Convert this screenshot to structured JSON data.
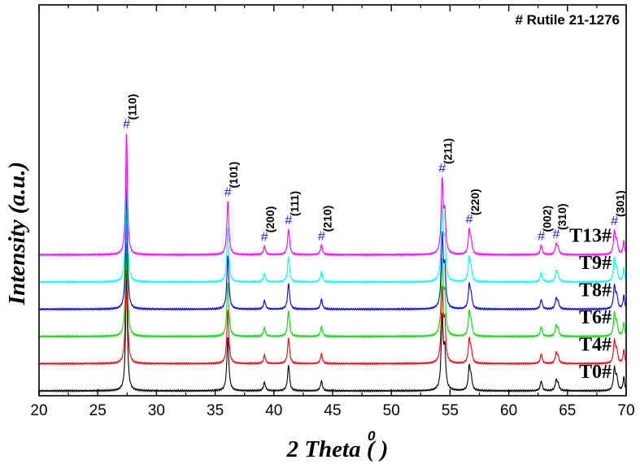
{
  "chart_data": {
    "type": "line",
    "title": "",
    "xlabel": "2 Theta",
    "xlabel_unit": "( )",
    "xlabel_unit_superscript": "0",
    "ylabel": "Intensity",
    "ylabel_unit": "(a.u.)",
    "xlim": [
      20,
      70
    ],
    "xticks": [
      20,
      25,
      30,
      35,
      40,
      45,
      50,
      55,
      60,
      65,
      70
    ],
    "xtick_labels": [
      "20",
      "25",
      "30",
      "35",
      "40",
      "45",
      "50",
      "55",
      "60",
      "65",
      "70"
    ],
    "yaxis_ticks_labeled": false,
    "grid": false,
    "reference_label": "# Rutile 21-1276",
    "peaks": [
      {
        "two_theta": 27.45,
        "hkl": "(110)",
        "rel_intensity": 1.0,
        "width": 0.09
      },
      {
        "two_theta": 36.08,
        "hkl": "(101)",
        "rel_intensity": 0.44,
        "width": 0.1
      },
      {
        "two_theta": 39.2,
        "hkl": "(200)",
        "rel_intensity": 0.07,
        "width": 0.1
      },
      {
        "two_theta": 41.25,
        "hkl": "(111)",
        "rel_intensity": 0.21,
        "width": 0.1
      },
      {
        "two_theta": 44.05,
        "hkl": "(210)",
        "rel_intensity": 0.08,
        "width": 0.1
      },
      {
        "two_theta": 54.33,
        "hkl": "(211)",
        "rel_intensity": 0.59,
        "width": 0.1
      },
      {
        "two_theta": 56.64,
        "hkl": "(220)",
        "rel_intensity": 0.19,
        "width": 0.1
      },
      {
        "two_theta": 62.77,
        "hkl": "(002)",
        "rel_intensity": 0.08,
        "width": 0.1
      },
      {
        "two_theta": 64.04,
        "hkl": "(310)",
        "rel_intensity": 0.08,
        "width": 0.1
      },
      {
        "two_theta": 69.0,
        "hkl": "(301)",
        "rel_intensity": 0.18,
        "width": 0.1
      }
    ],
    "minor_peaks": [
      {
        "two_theta": 54.55,
        "rel_intensity": 0.3,
        "width": 0.1
      },
      {
        "two_theta": 56.8,
        "rel_intensity": 0.09,
        "width": 0.1
      },
      {
        "two_theta": 64.2,
        "rel_intensity": 0.05,
        "width": 0.1
      },
      {
        "two_theta": 69.2,
        "rel_intensity": 0.1,
        "width": 0.1
      },
      {
        "two_theta": 69.8,
        "rel_intensity": 0.11,
        "width": 0.08
      }
    ],
    "series": [
      {
        "name": "T0#",
        "color": "#000000",
        "order": 0
      },
      {
        "name": "T4#",
        "color": "#ff0000",
        "order": 1
      },
      {
        "name": "T6#",
        "color": "#00dd00",
        "order": 2
      },
      {
        "name": "T8#",
        "color": "#0000ff",
        "order": 3
      },
      {
        "name": "T9#",
        "color": "#00ffff",
        "order": 4
      },
      {
        "name": "T13#",
        "color": "#ff00ff",
        "order": 5
      }
    ],
    "series_offset_step": 0.134,
    "peak_scale": 0.6,
    "ylim": [
      0,
      1.9
    ]
  }
}
